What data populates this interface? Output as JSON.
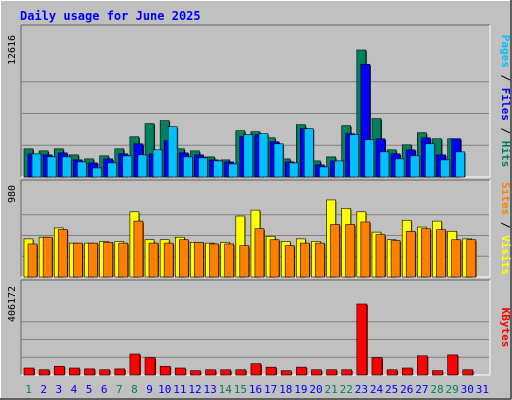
{
  "title": "Daily usage for June 2025",
  "colors": {
    "background": "#c0c0c0",
    "panel": "#c0c0c0",
    "title": "#0000ff",
    "hits": "#00805c",
    "files": "#0000ff",
    "pages": "#00c0ff",
    "visits": "#ffff00",
    "sites": "#ff8000",
    "kbytes": "#ff0000",
    "weekend_day": "#00805c",
    "weekday": "#0000ff"
  },
  "chart_data": [
    {
      "type": "bar",
      "panel": "hits-files-pages",
      "ylabel_parts": [
        "Pages",
        " / ",
        "Files",
        " / ",
        "Hits"
      ],
      "ymax_label": "12616",
      "ylim": [
        0,
        12616
      ],
      "categories": [
        "1",
        "2",
        "3",
        "4",
        "5",
        "6",
        "7",
        "8",
        "9",
        "10",
        "11",
        "12",
        "13",
        "14",
        "15",
        "16",
        "17",
        "18",
        "19",
        "20",
        "21",
        "22",
        "23",
        "24",
        "25",
        "26",
        "27",
        "28",
        "29",
        "30",
        "31"
      ],
      "series": [
        {
          "name": "Hits",
          "values": [
            2800,
            2600,
            2800,
            2200,
            1800,
            2100,
            2800,
            4000,
            5300,
            5600,
            2800,
            2600,
            2000,
            1700,
            4600,
            4500,
            3900,
            1800,
            5200,
            1600,
            2000,
            5100,
            12616,
            5800,
            2700,
            3200,
            4400,
            3800,
            3800,
            0,
            0
          ]
        },
        {
          "name": "Files",
          "values": [
            2300,
            2200,
            2400,
            1700,
            1400,
            1800,
            2300,
            3300,
            2300,
            3600,
            2400,
            2200,
            1700,
            1500,
            4000,
            4200,
            3500,
            1500,
            4800,
            1200,
            1600,
            4300,
            11200,
            3800,
            2300,
            2700,
            3900,
            2200,
            3800,
            0,
            0
          ]
        },
        {
          "name": "Pages",
          "values": [
            2300,
            2000,
            2000,
            1500,
            900,
            1400,
            2100,
            2200,
            2700,
            5000,
            2000,
            1900,
            1600,
            1300,
            4200,
            4300,
            3300,
            1400,
            4800,
            1000,
            1600,
            4200,
            3700,
            2500,
            1800,
            2100,
            3300,
            1700,
            2500,
            0,
            0
          ]
        }
      ]
    },
    {
      "type": "bar",
      "panel": "visits-sites",
      "ylabel_parts": [
        "Sites",
        " / ",
        "Visits"
      ],
      "ymax_label": "980",
      "ylim": [
        0,
        980
      ],
      "categories": [
        "1",
        "2",
        "3",
        "4",
        "5",
        "6",
        "7",
        "8",
        "9",
        "10",
        "11",
        "12",
        "13",
        "14",
        "15",
        "16",
        "17",
        "18",
        "19",
        "20",
        "21",
        "22",
        "23",
        "24",
        "25",
        "26",
        "27",
        "28",
        "29",
        "30",
        "31"
      ],
      "series": [
        {
          "name": "Visits",
          "values": [
            450,
            470,
            580,
            400,
            400,
            420,
            420,
            770,
            440,
            440,
            470,
            410,
            400,
            410,
            720,
            790,
            480,
            420,
            450,
            420,
            910,
            810,
            770,
            530,
            440,
            670,
            590,
            660,
            540,
            450,
            0
          ]
        },
        {
          "name": "Sites",
          "values": [
            390,
            470,
            560,
            400,
            400,
            410,
            400,
            660,
            400,
            400,
            440,
            410,
            390,
            390,
            370,
            570,
            440,
            370,
            400,
            400,
            620,
            620,
            650,
            500,
            430,
            540,
            570,
            560,
            440,
            440,
            0
          ]
        }
      ]
    },
    {
      "type": "bar",
      "panel": "kbytes",
      "ylabel_parts": [
        "KBytes"
      ],
      "ymax_label": "406172",
      "ylim": [
        0,
        406172
      ],
      "categories": [
        "1",
        "2",
        "3",
        "4",
        "5",
        "6",
        "7",
        "8",
        "9",
        "10",
        "11",
        "12",
        "13",
        "14",
        "15",
        "16",
        "17",
        "18",
        "19",
        "20",
        "21",
        "22",
        "23",
        "24",
        "25",
        "26",
        "27",
        "28",
        "29",
        "30",
        "31"
      ],
      "series": [
        {
          "name": "KBytes",
          "values": [
            40000,
            30000,
            50000,
            40000,
            35000,
            30000,
            35000,
            120000,
            100000,
            50000,
            40000,
            25000,
            30000,
            30000,
            30000,
            65000,
            45000,
            25000,
            45000,
            30000,
            30000,
            30000,
            406172,
            100000,
            30000,
            40000,
            110000,
            25000,
            115000,
            30000,
            0
          ]
        }
      ]
    }
  ],
  "day_labels": [
    "1",
    "2",
    "3",
    "4",
    "5",
    "6",
    "7",
    "8",
    "9",
    "10",
    "11",
    "12",
    "13",
    "14",
    "15",
    "16",
    "17",
    "18",
    "19",
    "20",
    "21",
    "22",
    "23",
    "24",
    "25",
    "26",
    "27",
    "28",
    "29",
    "30",
    "31"
  ],
  "weekend_days": [
    1,
    7,
    8,
    14,
    15,
    21,
    22,
    28,
    29
  ]
}
